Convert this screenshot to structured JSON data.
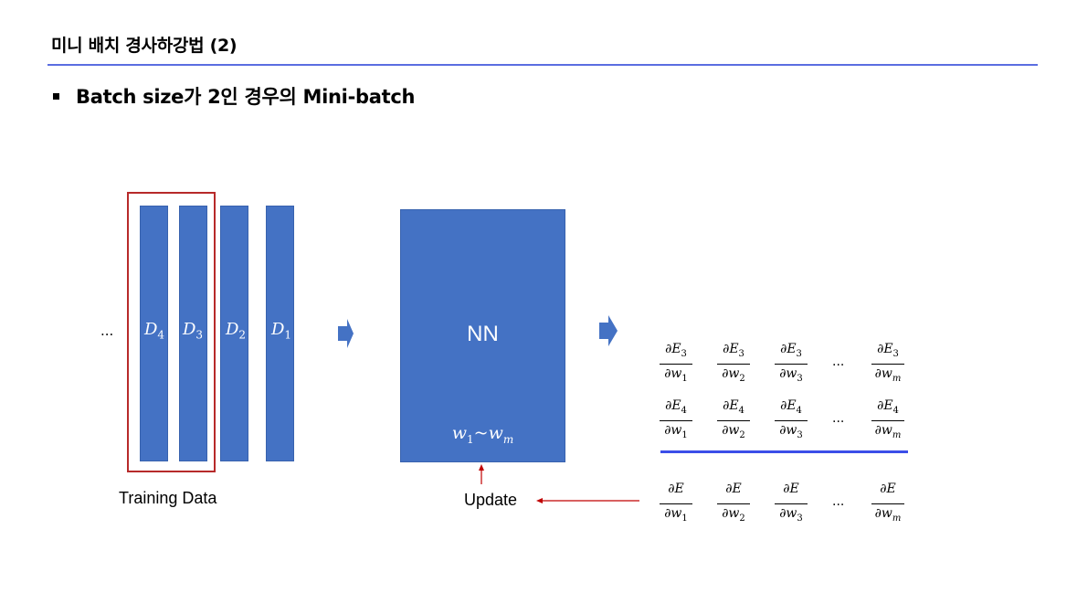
{
  "slide": {
    "title": "미니 배치 경사하강법 (2)",
    "bullet": "Batch size가 2인 경우의 Mini-batch"
  },
  "training": {
    "leading_ellipsis": "...",
    "bars": [
      {
        "base": "D",
        "sub": "4"
      },
      {
        "base": "D",
        "sub": "3"
      },
      {
        "base": "D",
        "sub": "2"
      },
      {
        "base": "D",
        "sub": "1"
      }
    ],
    "label": "Training Data",
    "mini_batch_highlight": [
      "D4",
      "D3"
    ]
  },
  "network": {
    "label": "NN",
    "weights": {
      "base": "w",
      "first_sub": "1",
      "sep": "~",
      "last_sub": "m"
    }
  },
  "update": {
    "label": "Update"
  },
  "gradients": {
    "rows": [
      {
        "error_sub": "3"
      },
      {
        "error_sub": "4"
      },
      {
        "error_sub": ""
      }
    ],
    "columns": [
      "1",
      "2",
      "3",
      "m"
    ],
    "ellipsis": "..."
  },
  "colors": {
    "bar_fill": "#4472c4",
    "batch_box": "#b72a2a",
    "rule": "#5b6ee1",
    "sum_rule": "#3b4ee8",
    "update_arrow": "#c00000"
  }
}
